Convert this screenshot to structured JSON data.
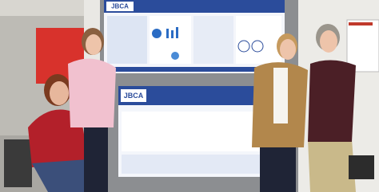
{
  "posters": [
    {
      "logo": "JBCA"
    },
    {
      "logo": "JBCA"
    }
  ]
}
